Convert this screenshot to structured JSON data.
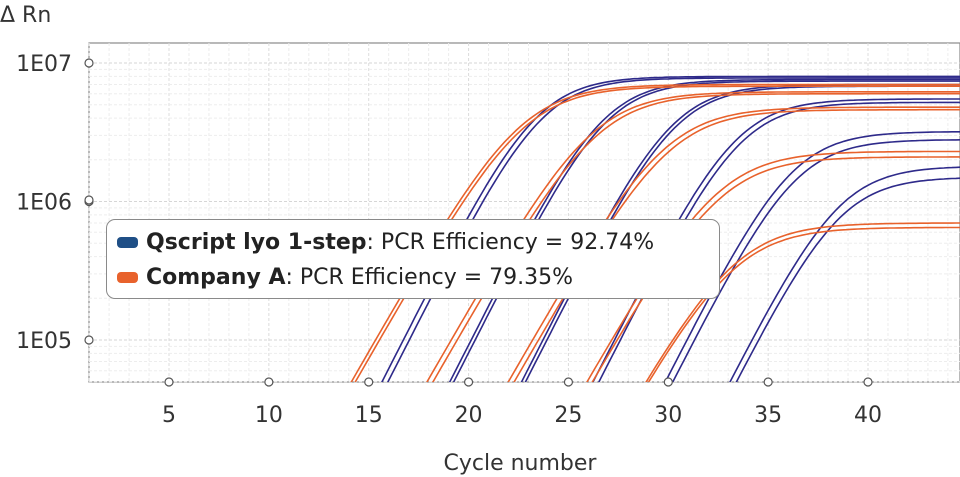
{
  "chart_data": {
    "type": "line",
    "ylabel": "Δ Rn",
    "xlabel": "Cycle number",
    "y_scale": "log",
    "x_ticks": [
      "5",
      "10",
      "15",
      "20",
      "25",
      "30",
      "35",
      "40"
    ],
    "y_ticks": [
      "1E05",
      "1E06",
      "1E07"
    ],
    "xlim": [
      1,
      45
    ],
    "ylim": [
      50000,
      15000000
    ],
    "grid": true,
    "legend_position": "left-middle",
    "series": [
      {
        "name": "Qscript lyo 1-step",
        "color": "#2e2a8a",
        "efficiency_label": ": PCR Efficiency = 92.74%",
        "curves": [
          {
            "ct": 18.9,
            "plateau": 8000000
          },
          {
            "ct": 19.2,
            "plateau": 7800000
          },
          {
            "ct": 22.3,
            "plateau": 7600000
          },
          {
            "ct": 22.5,
            "plateau": 7400000
          },
          {
            "ct": 25.9,
            "plateau": 7000000
          },
          {
            "ct": 26.1,
            "plateau": 6800000
          },
          {
            "ct": 29.5,
            "plateau": 5500000
          },
          {
            "ct": 29.8,
            "plateau": 5200000
          },
          {
            "ct": 33.2,
            "plateau": 3200000
          },
          {
            "ct": 33.6,
            "plateau": 2800000
          },
          {
            "ct": 36.6,
            "plateau": 1800000
          },
          {
            "ct": 37.0,
            "plateau": 1500000
          }
        ]
      },
      {
        "name": "Company A",
        "color": "#e8622c",
        "efficiency_label": ": PCR Efficiency = 79.35%",
        "curves": [
          {
            "ct": 17.8,
            "plateau": 7000000
          },
          {
            "ct": 18.0,
            "plateau": 6800000
          },
          {
            "ct": 21.6,
            "plateau": 6200000
          },
          {
            "ct": 21.9,
            "plateau": 6000000
          },
          {
            "ct": 25.7,
            "plateau": 4800000
          },
          {
            "ct": 26.0,
            "plateau": 4600000
          },
          {
            "ct": 29.8,
            "plateau": 2300000
          },
          {
            "ct": 30.1,
            "plateau": 2100000
          },
          {
            "ct": 33.8,
            "plateau": 700000
          },
          {
            "ct": 34.1,
            "plateau": 650000
          }
        ]
      }
    ]
  }
}
